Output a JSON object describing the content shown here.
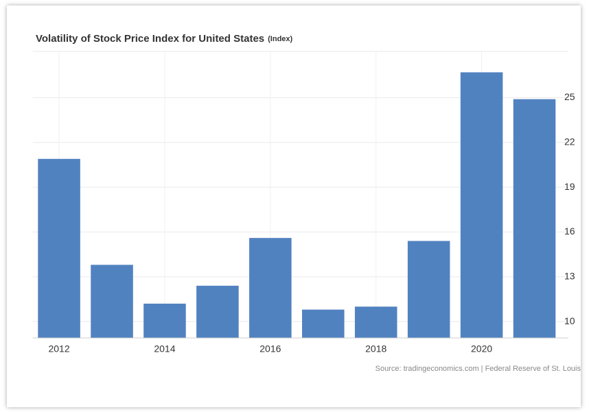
{
  "chart_data": {
    "type": "bar",
    "title": "Volatility of Stock Price Index for United States",
    "unit": "(Index)",
    "source": "Source: tradingeconomics.com | Federal Reserve of St. Louis",
    "categories": [
      "2012",
      null,
      "2014",
      null,
      "2016",
      null,
      "2018",
      null,
      "2020",
      null
    ],
    "values": [
      20.9,
      13.8,
      11.2,
      12.4,
      15.6,
      10.8,
      11.0,
      15.4,
      26.7,
      24.9
    ],
    "color": "#5182c0",
    "ylim": [
      8.9,
      28.1
    ],
    "yticks": [
      10,
      13,
      16,
      19,
      22,
      25
    ],
    "grid": true
  }
}
